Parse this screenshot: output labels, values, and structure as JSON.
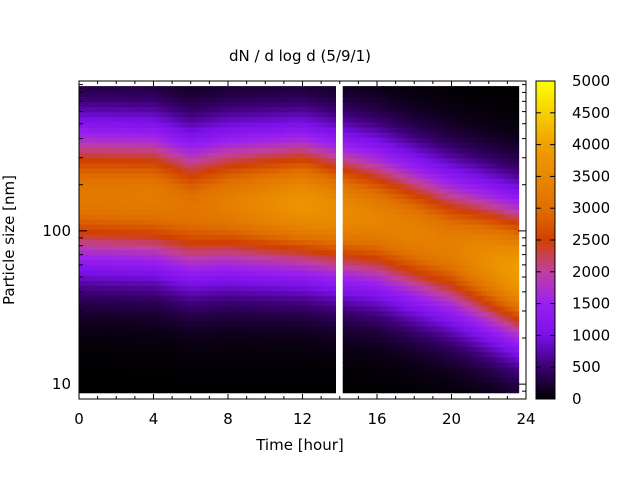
{
  "chart_data": {
    "type": "heatmap",
    "title": "dN / d log d (5/9/1)",
    "xlabel": "Time [hour]",
    "ylabel": "Particle size [nm]",
    "x_ticks": [
      "0",
      "4",
      "8",
      "12",
      "16",
      "20",
      "24"
    ],
    "x_tick_values": [
      0,
      4,
      8,
      12,
      16,
      20,
      24
    ],
    "xlim": [
      0,
      24
    ],
    "y_scale": "log",
    "y_ticks": [
      "10",
      "100"
    ],
    "y_tick_values": [
      10,
      100
    ],
    "ylim": [
      8,
      950
    ],
    "colorbar": {
      "ticks": [
        "0",
        "500",
        "1000",
        "1500",
        "2000",
        "2500",
        "3000",
        "3500",
        "4000",
        "4500",
        "5000"
      ],
      "tick_values": [
        0,
        500,
        1000,
        1500,
        2000,
        2500,
        3000,
        3500,
        4000,
        4500,
        5000
      ],
      "range": [
        0,
        5000
      ],
      "colors": [
        "#000000",
        "#3a0070",
        "#7a10e8",
        "#9a20f0",
        "#c040a0",
        "#d04000",
        "#e07000",
        "#f0a000",
        "#ffff00"
      ]
    },
    "data_gap_hours": [
      13.7,
      14.2
    ],
    "series": [
      {
        "x": 0,
        "peak_diameter_nm": 170,
        "peak_value": 3200
      },
      {
        "x": 4,
        "peak_diameter_nm": 165,
        "peak_value": 3250
      },
      {
        "x": 6,
        "peak_diameter_nm": 140,
        "peak_value": 3100
      },
      {
        "x": 8,
        "peak_diameter_nm": 150,
        "peak_value": 3300
      },
      {
        "x": 12,
        "peak_diameter_nm": 150,
        "peak_value": 3750
      },
      {
        "x": 16,
        "peak_diameter_nm": 120,
        "peak_value": 3400
      },
      {
        "x": 20,
        "peak_diameter_nm": 80,
        "peak_value": 3300
      },
      {
        "x": 23.5,
        "peak_diameter_nm": 55,
        "peak_value": 3900
      }
    ]
  }
}
